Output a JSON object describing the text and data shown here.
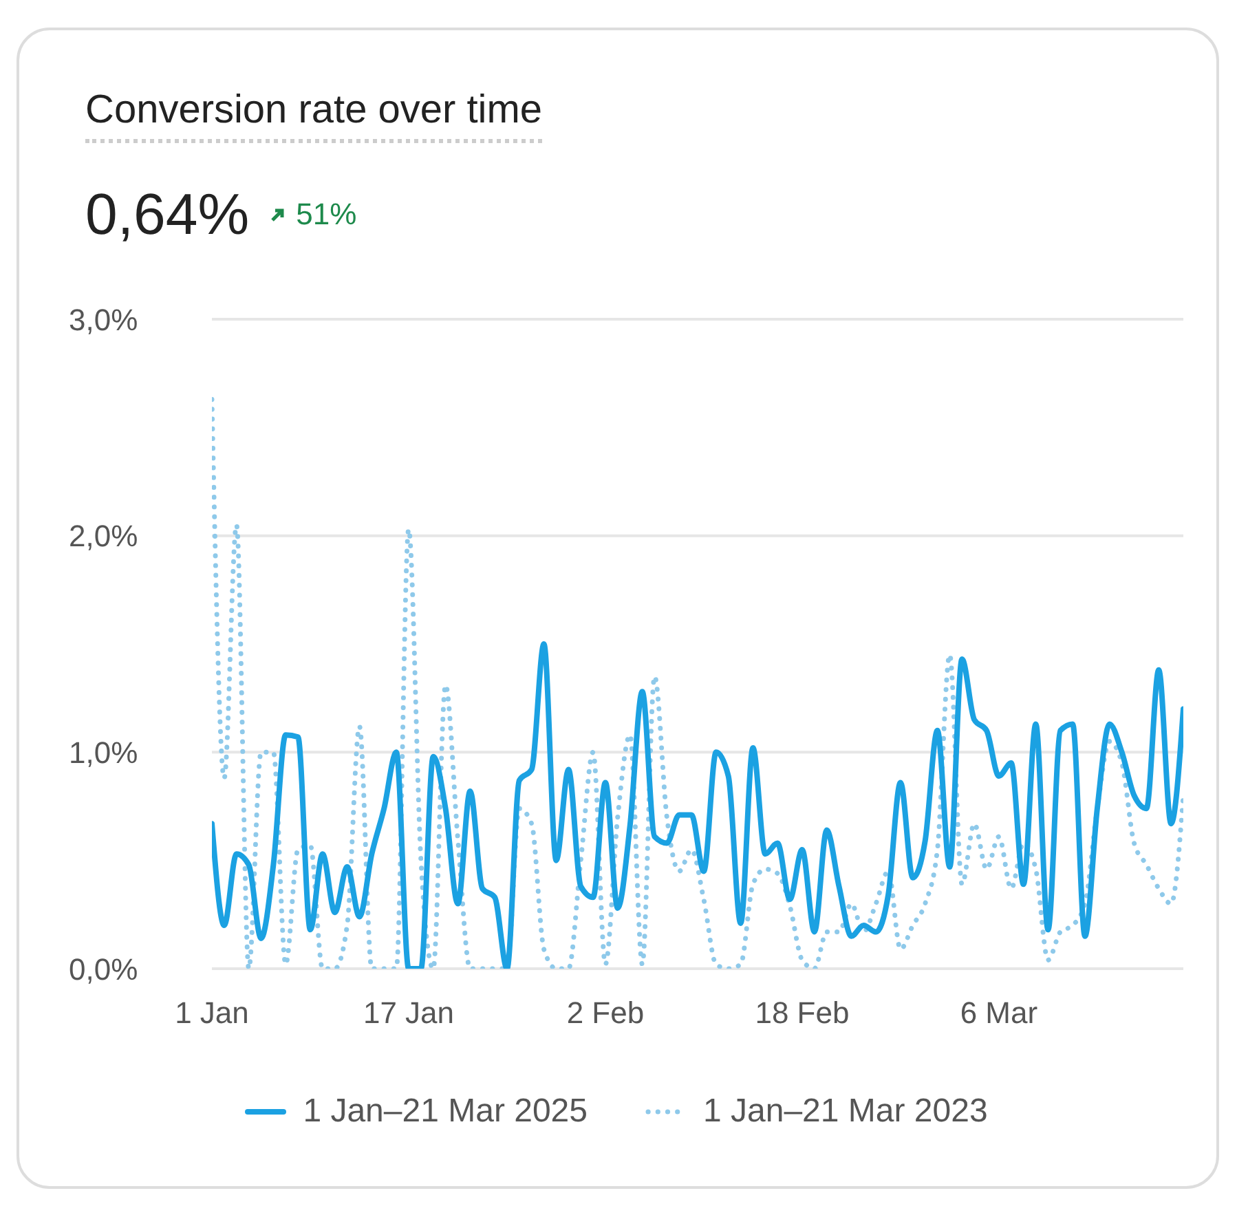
{
  "chart_data": {
    "type": "line",
    "title": "Conversion rate over time",
    "subtitle": "0,64%",
    "annotations": [
      "51%"
    ],
    "x": [
      "2025-01-01",
      "2025-01-02",
      "2025-01-03",
      "2025-01-04",
      "2025-01-05",
      "2025-01-06",
      "2025-01-07",
      "2025-01-08",
      "2025-01-09",
      "2025-01-10",
      "2025-01-11",
      "2025-01-12",
      "2025-01-13",
      "2025-01-14",
      "2025-01-15",
      "2025-01-16",
      "2025-01-17",
      "2025-01-18",
      "2025-01-19",
      "2025-01-20",
      "2025-01-21",
      "2025-01-22",
      "2025-01-23",
      "2025-01-24",
      "2025-01-25",
      "2025-01-26",
      "2025-01-27",
      "2025-01-28",
      "2025-01-29",
      "2025-01-30",
      "2025-01-31",
      "2025-02-01",
      "2025-02-02",
      "2025-02-03",
      "2025-02-04",
      "2025-02-05",
      "2025-02-06",
      "2025-02-07",
      "2025-02-08",
      "2025-02-09",
      "2025-02-10",
      "2025-02-11",
      "2025-02-12",
      "2025-02-13",
      "2025-02-14",
      "2025-02-15",
      "2025-02-16",
      "2025-02-17",
      "2025-02-18",
      "2025-02-19",
      "2025-02-20",
      "2025-02-21",
      "2025-02-22",
      "2025-02-23",
      "2025-02-24",
      "2025-02-25",
      "2025-02-26",
      "2025-02-27",
      "2025-02-28",
      "2025-03-01",
      "2025-03-02",
      "2025-03-03",
      "2025-03-04",
      "2025-03-05",
      "2025-03-06",
      "2025-03-07",
      "2025-03-08",
      "2025-03-09",
      "2025-03-10",
      "2025-03-11",
      "2025-03-12",
      "2025-03-13",
      "2025-03-14",
      "2025-03-15",
      "2025-03-16",
      "2025-03-17",
      "2025-03-18",
      "2025-03-19",
      "2025-03-20",
      "2025-03-21"
    ],
    "series": [
      {
        "name": "1 Jan–21 Mar 2025",
        "color": "#1ba1e2",
        "line_style": "solid",
        "values": [
          0.67,
          0.2,
          0.53,
          0.48,
          0.14,
          0.48,
          1.08,
          1.07,
          0.18,
          0.53,
          0.26,
          0.47,
          0.24,
          0.53,
          0.74,
          1.0,
          0,
          0,
          0.98,
          0.74,
          0.3,
          0.82,
          0.37,
          0.33,
          0,
          0.87,
          0.92,
          1.5,
          0.5,
          0.92,
          0.38,
          0.33,
          0.86,
          0.28,
          0.66,
          1.28,
          0.61,
          0.58,
          0.71,
          0.71,
          0.45,
          1.0,
          0.89,
          0.21,
          1.02,
          0.53,
          0.58,
          0.32,
          0.55,
          0.17,
          0.64,
          0.38,
          0.15,
          0.2,
          0.17,
          0.34,
          0.86,
          0.42,
          0.59,
          1.1,
          0.47,
          1.43,
          1.15,
          1.1,
          0.89,
          0.95,
          0.39,
          1.13,
          0.18,
          1.1,
          1.13,
          0.15,
          0.74,
          1.13,
          1.0,
          0.8,
          0.74,
          1.38,
          0.67,
          1.2
        ]
      },
      {
        "name": "1 Jan–21 Mar 2023",
        "color": "#8ec9ea",
        "line_style": "dotted",
        "values": [
          2.63,
          0.88,
          2.05,
          0,
          1.0,
          1.0,
          0.02,
          0.55,
          0.57,
          0,
          0,
          0.2,
          1.12,
          0,
          0,
          0,
          2.03,
          0.5,
          0,
          1.31,
          0.6,
          0,
          0,
          0,
          0,
          0.74,
          0.67,
          0.09,
          0,
          0,
          0.5,
          1.0,
          0.02,
          0.7,
          1.08,
          0.02,
          1.35,
          0.7,
          0.45,
          0.55,
          0.32,
          0.02,
          0,
          0.02,
          0.39,
          0.46,
          0.44,
          0.29,
          0.04,
          0,
          0.17,
          0.17,
          0.3,
          0.17,
          0.3,
          0.45,
          0.09,
          0.2,
          0.3,
          0.55,
          1.45,
          0.39,
          0.67,
          0.46,
          0.61,
          0.37,
          0.58,
          0.46,
          0.04,
          0.17,
          0.2,
          0.3,
          0.74,
          1.05,
          0.95,
          0.58,
          0.48,
          0.37,
          0.3,
          0.8
        ]
      }
    ],
    "xlim": [
      "2025-01-01",
      "2025-03-21"
    ],
    "xticks": [
      {
        "value": "2025-01-01",
        "label": "1 Jan"
      },
      {
        "value": "2025-01-17",
        "label": "17 Jan"
      },
      {
        "value": "2025-02-02",
        "label": "2 Feb"
      },
      {
        "value": "2025-02-18",
        "label": "18 Feb"
      },
      {
        "value": "2025-03-06",
        "label": "6 Mar"
      }
    ],
    "ylim": [
      0,
      3
    ],
    "yticks": [
      {
        "value": 0,
        "label": "0,0%"
      },
      {
        "value": 1,
        "label": "1,0%"
      },
      {
        "value": 2,
        "label": "2,0%"
      },
      {
        "value": 3,
        "label": "3,0%"
      }
    ],
    "grid": "y",
    "legend": "bottom",
    "marker": "none"
  }
}
